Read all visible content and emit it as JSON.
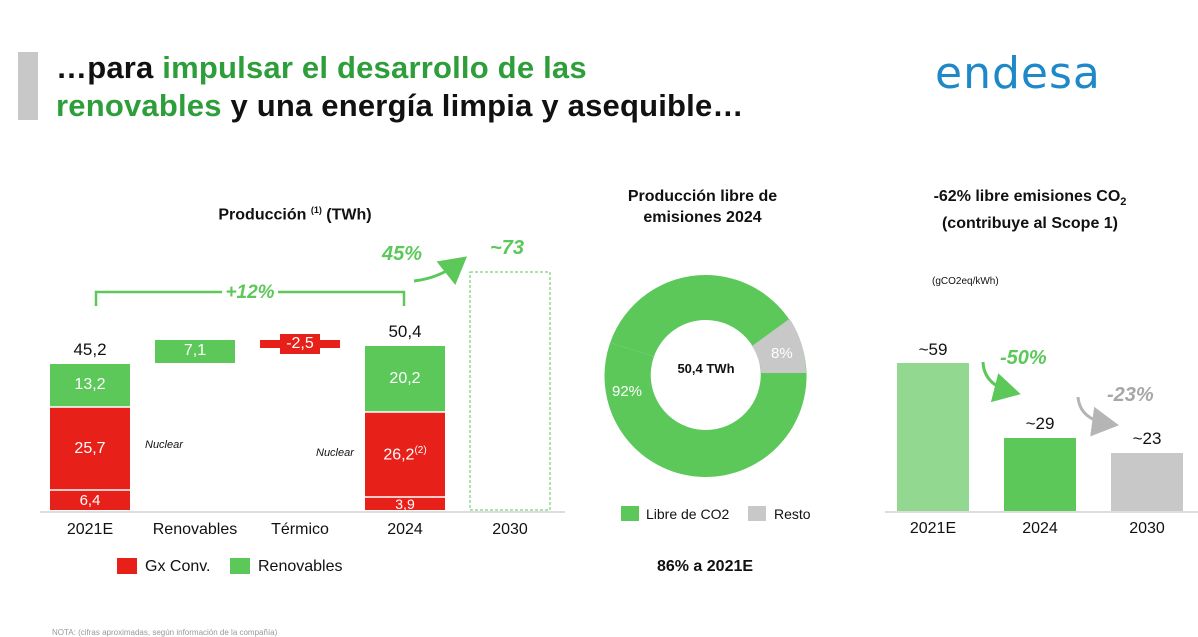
{
  "header": {
    "line1_black": "…para ",
    "line1_green": "impulsar el desarrollo de las",
    "line2_green": "renovables",
    "line2_black": " y una energía limpia y asequible…",
    "logo": "endesa"
  },
  "colors": {
    "green": "#5cc85a",
    "red": "#e8201a",
    "grey": "#c8c8c8",
    "light_green": "#93d890"
  },
  "production_chart": {
    "title_main": "Producción",
    "title_sup": "(1)",
    "title_unit": "(TWh)",
    "growth_label": "+12%",
    "growth_2030_label": "45%",
    "label_2030": "~73",
    "note_nuclear": "Nuclear",
    "note_sup": "(2)",
    "legend": [
      {
        "label": "Gx Conv.",
        "color": "#e8201a"
      },
      {
        "label": "Renovables",
        "color": "#5cc85a"
      }
    ]
  },
  "emissions_free": {
    "title_line1": "Producción libre de",
    "title_line2": "emisiones 2024",
    "center_label": "50,4 TWh",
    "bottom_label": "86% a 2021E",
    "legend": [
      {
        "label": "Libre de CO2",
        "color": "#5cc85a"
      },
      {
        "label": "Resto",
        "color": "#c8c8c8"
      }
    ]
  },
  "intensity_chart": {
    "title_line1": "-62% libre emisiones CO",
    "title_sub": "2",
    "title_line2": "(contribuye al Scope 1)",
    "unit": "(gCO2eq/kWh)",
    "drop1": "-50%",
    "drop2": "-23%"
  },
  "footnote": "NOTA: (cifras aproximadas, según información de la compañía)",
  "chart_data": [
    {
      "type": "bar",
      "subtype": "waterfall-stacked",
      "title": "Producción (1) (TWh)",
      "categories": [
        "2021E",
        "Renovables",
        "Térmico",
        "2024",
        "2030"
      ],
      "series": [
        {
          "name": "Nuclear",
          "values": [
            6.4,
            null,
            null,
            3.9,
            null
          ]
        },
        {
          "name": "Gx Conv.",
          "values": [
            25.7,
            null,
            -2.5,
            26.2,
            null
          ]
        },
        {
          "name": "Renovables",
          "values": [
            13.2,
            7.1,
            null,
            20.2,
            null
          ]
        }
      ],
      "totals": [
        {
          "label": "45,2"
        },
        null,
        null,
        {
          "label": "50,4"
        },
        {
          "label": "~73"
        }
      ],
      "value_labels": {
        "2021E": [
          "6,4",
          "25,7",
          "13,2"
        ],
        "Renovables": "7,1",
        "Térmico": "-2,5",
        "2024": [
          "3,9",
          "26,2",
          "20,2"
        ]
      },
      "annotations": [
        "+12%",
        "45%"
      ],
      "ylim": [
        0,
        73
      ]
    },
    {
      "type": "pie",
      "subtype": "donut",
      "title": "Producción libre de emisiones 2024",
      "labels": [
        "Libre de CO2",
        "Resto"
      ],
      "values": [
        92,
        8
      ],
      "value_labels": [
        "92%",
        "8%"
      ],
      "center": "50,4 TWh"
    },
    {
      "type": "bar",
      "title": "-62% libre emisiones CO2 (contribuye al Scope 1)",
      "ylabel": "(gCO2eq/kWh)",
      "categories": [
        "2021E",
        "2024",
        "2030"
      ],
      "values": [
        59,
        29,
        23
      ],
      "value_labels": [
        "~59",
        "~29",
        "~23"
      ],
      "annotations": [
        "-50%",
        "-23%"
      ],
      "ylim": [
        0,
        59
      ]
    }
  ]
}
